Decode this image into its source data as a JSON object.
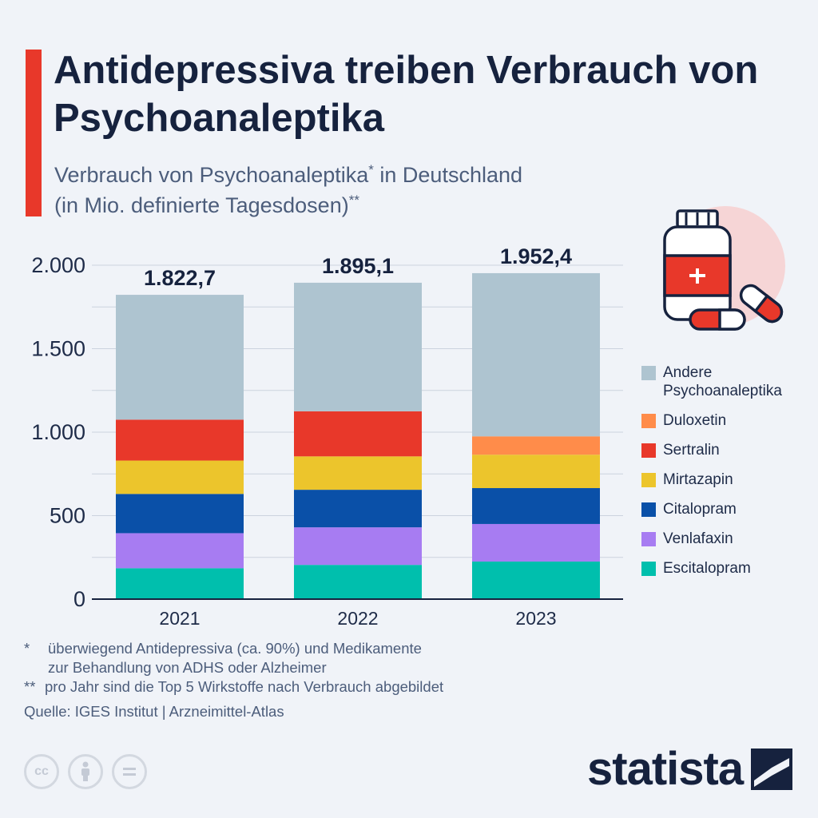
{
  "header": {
    "title": "Antidepressiva treiben Verbrauch von Psychoanaleptika",
    "subtitle_line1_main": "Verbrauch von Psychoanaleptika",
    "subtitle_line1_mark": "*",
    "subtitle_line1_rest": " in Deutschland",
    "subtitle_line2_main": "(in Mio. definierte Tagesdosen)",
    "subtitle_line2_mark": "**"
  },
  "chart_data": {
    "type": "bar",
    "stacked": true,
    "categories": [
      "2021",
      "2022",
      "2023"
    ],
    "totals": [
      "1.822,7",
      "1.895,1",
      "1.952,4"
    ],
    "total_values": [
      1822.7,
      1895.1,
      1952.4
    ],
    "ylim": [
      0,
      2000
    ],
    "yticks": [
      0,
      500,
      1000,
      1500,
      2000
    ],
    "ytick_labels": [
      "0",
      "500",
      "1.000",
      "1.500",
      "2.000"
    ],
    "grid": true,
    "legend_position": "right",
    "series": [
      {
        "name": "Escitalopram",
        "color": "#00bfad",
        "values": [
          185,
          205,
          225
        ]
      },
      {
        "name": "Venlafaxin",
        "color": "#a77cf2",
        "values": [
          210,
          225,
          225
        ]
      },
      {
        "name": "Citalopram",
        "color": "#0a50a8",
        "values": [
          235,
          225,
          215
        ]
      },
      {
        "name": "Mirtazapin",
        "color": "#ecc52c",
        "values": [
          200,
          200,
          200
        ]
      },
      {
        "name": "Sertralin",
        "color": "#e8382a",
        "values": [
          245,
          270,
          0
        ]
      },
      {
        "name": "Duloxetin",
        "color": "#ff8c4a",
        "values": [
          0,
          0,
          110
        ]
      },
      {
        "name": "Andere Psychoanaleptika",
        "color": "#aec4d0",
        "values": [
          747.7,
          770.1,
          977.4
        ]
      }
    ]
  },
  "legend": [
    {
      "label": "Andere Psychoanaleptika",
      "color": "#aec4d0"
    },
    {
      "label": "Duloxetin",
      "color": "#ff8c4a"
    },
    {
      "label": "Sertralin",
      "color": "#e8382a"
    },
    {
      "label": "Mirtazapin",
      "color": "#ecc52c"
    },
    {
      "label": "Citalopram",
      "color": "#0a50a8"
    },
    {
      "label": "Venlafaxin",
      "color": "#a77cf2"
    },
    {
      "label": "Escitalopram",
      "color": "#00bfad"
    }
  ],
  "notes": {
    "note1_mark": "*",
    "note1_line1": "überwiegend Antidepressiva (ca. 90%) und Medikamente",
    "note1_line2": "zur Behandlung von ADHS oder Alzheimer",
    "note2_mark": "**",
    "note2_text": "pro Jahr sind die Top 5 Wirkstoffe nach Verbrauch abgebildet",
    "source": "Quelle: IGES Institut | Arzneimittel-Atlas"
  },
  "footer": {
    "brand": "statista",
    "cc_icons": [
      "cc-icon",
      "attribution-icon",
      "no-derivatives-icon"
    ],
    "cc_label": "cc"
  },
  "illustration": {
    "icon": "medicine-bottle-and-pills-icon"
  }
}
